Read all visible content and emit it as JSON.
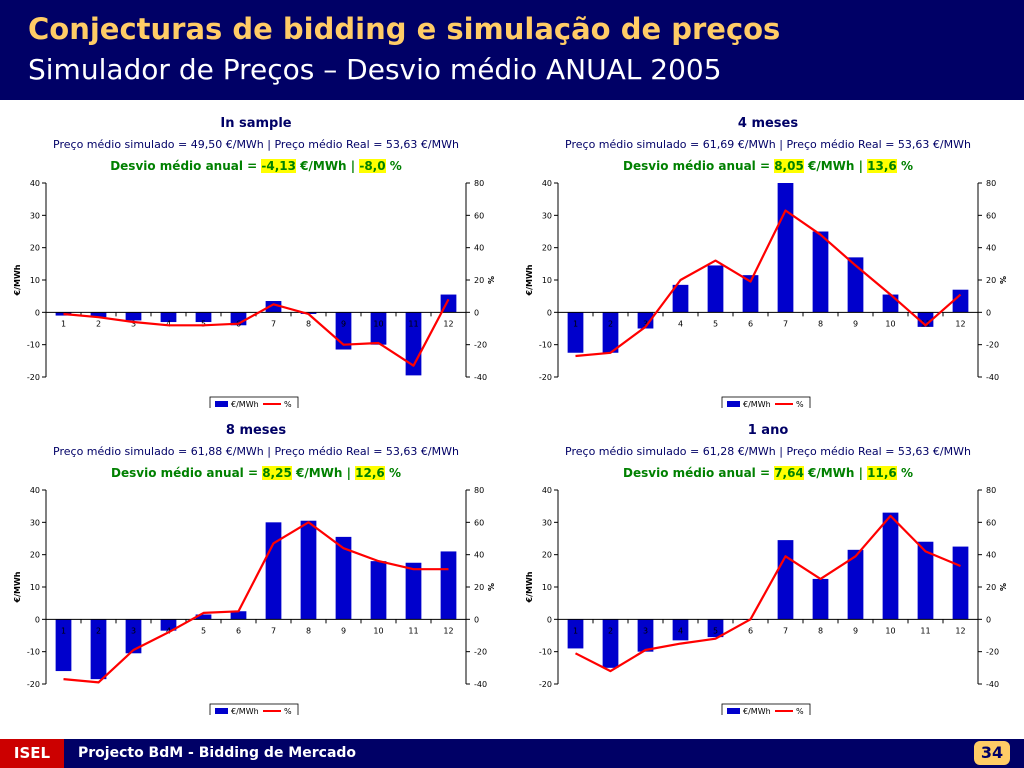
{
  "header": {
    "title": "Conjecturas de bidding e simulação de preços",
    "subtitle": "Simulador de Preços – Desvio médio ANUAL 2005"
  },
  "footer": {
    "logo": "ISEL",
    "project": "Projecto BdM - Bidding de Mercado",
    "page": "34"
  },
  "colors": {
    "header_bg": "#000066",
    "title": "#ffcc66",
    "bar": "#0000cc",
    "line": "#ff0000",
    "deviation": "#008000",
    "highlight": "#ffff00"
  },
  "panels": [
    {
      "title": "In sample",
      "subtitle": "Preço médio simulado = 49,50 €/MWh | Preço médio Real = 53,63 €/MWh",
      "dev_prefix": "Desvio médio anual = ",
      "dev_val1": "-4,13",
      "dev_mid": " €/MWh | ",
      "dev_val2": "-8,0",
      "dev_suffix": " %"
    },
    {
      "title": "4 meses",
      "subtitle": "Preço médio simulado = 61,69 €/MWh | Preço médio Real = 53,63 €/MWh",
      "dev_prefix": "Desvio médio anual = ",
      "dev_val1": "8,05",
      "dev_mid": " €/MWh | ",
      "dev_val2": "13,6",
      "dev_suffix": " %"
    },
    {
      "title": "8 meses",
      "subtitle": "Preço médio simulado = 61,88 €/MWh | Preço médio Real = 53,63 €/MWh",
      "dev_prefix": "Desvio médio anual = ",
      "dev_val1": "8,25",
      "dev_mid": " €/MWh | ",
      "dev_val2": "12,6",
      "dev_suffix": " %"
    },
    {
      "title": "1 ano",
      "subtitle": "Preço médio simulado = 61,28 €/MWh | Preço médio Real = 53,63 €/MWh",
      "dev_prefix": "Desvio médio anual = ",
      "dev_val1": "7,64",
      "dev_mid": " €/MWh | ",
      "dev_val2": "11,6",
      "dev_suffix": " %"
    }
  ],
  "chart_data": [
    {
      "type": "bar",
      "title": "In sample",
      "categories": [
        "1",
        "2",
        "3",
        "4",
        "5",
        "6",
        "7",
        "8",
        "9",
        "10",
        "11",
        "12"
      ],
      "ylabel": "€/MWh",
      "y2label": "%",
      "ylim": [
        -20,
        40
      ],
      "y2lim": [
        -40,
        80
      ],
      "yticks": [
        -20,
        -10,
        0,
        10,
        20,
        30,
        40
      ],
      "y2ticks": [
        -40,
        -20,
        0,
        20,
        40,
        60,
        80
      ],
      "legend": "bottom",
      "series": [
        {
          "name": "€/MWh",
          "kind": "bar",
          "values": [
            -1,
            -1.5,
            -2.5,
            -3,
            -3,
            -4,
            3.5,
            -0.5,
            -11.5,
            -10,
            -19.5,
            5.5
          ]
        },
        {
          "name": "%",
          "kind": "line",
          "values": [
            -1,
            -3,
            -6,
            -8,
            -8,
            -7,
            5,
            -1,
            -20,
            -19,
            -33,
            8
          ]
        }
      ]
    },
    {
      "type": "bar",
      "title": "4 meses",
      "categories": [
        "1",
        "2",
        "3",
        "4",
        "5",
        "6",
        "7",
        "8",
        "9",
        "10",
        "11",
        "12"
      ],
      "ylabel": "€/MWh",
      "y2label": "%",
      "ylim": [
        -20,
        40
      ],
      "y2lim": [
        -40,
        80
      ],
      "yticks": [
        -20,
        -10,
        0,
        10,
        20,
        30,
        40
      ],
      "y2ticks": [
        -40,
        -20,
        0,
        20,
        40,
        60,
        80
      ],
      "legend": "bottom",
      "series": [
        {
          "name": "€/MWh",
          "kind": "bar",
          "values": [
            -12.5,
            -12.5,
            -5,
            8.5,
            14.5,
            11.5,
            40,
            25,
            17,
            5.5,
            -4.5,
            7
          ]
        },
        {
          "name": "%",
          "kind": "line",
          "values": [
            -27,
            -25,
            -9,
            20,
            32,
            19,
            63,
            48,
            29,
            11,
            -8,
            11
          ]
        }
      ]
    },
    {
      "type": "bar",
      "title": "8 meses",
      "categories": [
        "1",
        "2",
        "3",
        "4",
        "5",
        "6",
        "7",
        "8",
        "9",
        "10",
        "11",
        "12"
      ],
      "ylabel": "€/MWh",
      "y2label": "%",
      "ylim": [
        -20,
        40
      ],
      "y2lim": [
        -40,
        80
      ],
      "yticks": [
        -20,
        -10,
        0,
        10,
        20,
        30,
        40
      ],
      "y2ticks": [
        -40,
        -20,
        0,
        20,
        40,
        60,
        80
      ],
      "legend": "bottom",
      "series": [
        {
          "name": "€/MWh",
          "kind": "bar",
          "values": [
            -16,
            -18.5,
            -10.5,
            -3.5,
            1.5,
            2.5,
            30,
            30.5,
            25.5,
            18,
            17.5,
            21
          ]
        },
        {
          "name": "%",
          "kind": "line",
          "values": [
            -37,
            -39,
            -19,
            -8,
            4,
            5,
            47,
            60,
            44,
            36,
            31,
            31
          ]
        }
      ]
    },
    {
      "type": "bar",
      "title": "1 ano",
      "categories": [
        "1",
        "2",
        "3",
        "4",
        "5",
        "6",
        "7",
        "8",
        "9",
        "10",
        "11",
        "12"
      ],
      "ylabel": "€/MWh",
      "y2label": "%",
      "ylim": [
        -20,
        40
      ],
      "y2lim": [
        -40,
        80
      ],
      "yticks": [
        -20,
        -10,
        0,
        10,
        20,
        30,
        40
      ],
      "y2ticks": [
        -40,
        -20,
        0,
        20,
        40,
        60,
        80
      ],
      "legend": "bottom",
      "series": [
        {
          "name": "€/MWh",
          "kind": "bar",
          "values": [
            -9,
            -15,
            -10,
            -6.5,
            -5.5,
            0,
            24.5,
            12.5,
            21.5,
            33,
            24,
            22.5
          ]
        },
        {
          "name": "%",
          "kind": "line",
          "values": [
            -21,
            -32,
            -19,
            -15,
            -12,
            0,
            39,
            25,
            39,
            64,
            42,
            33
          ]
        }
      ]
    }
  ]
}
